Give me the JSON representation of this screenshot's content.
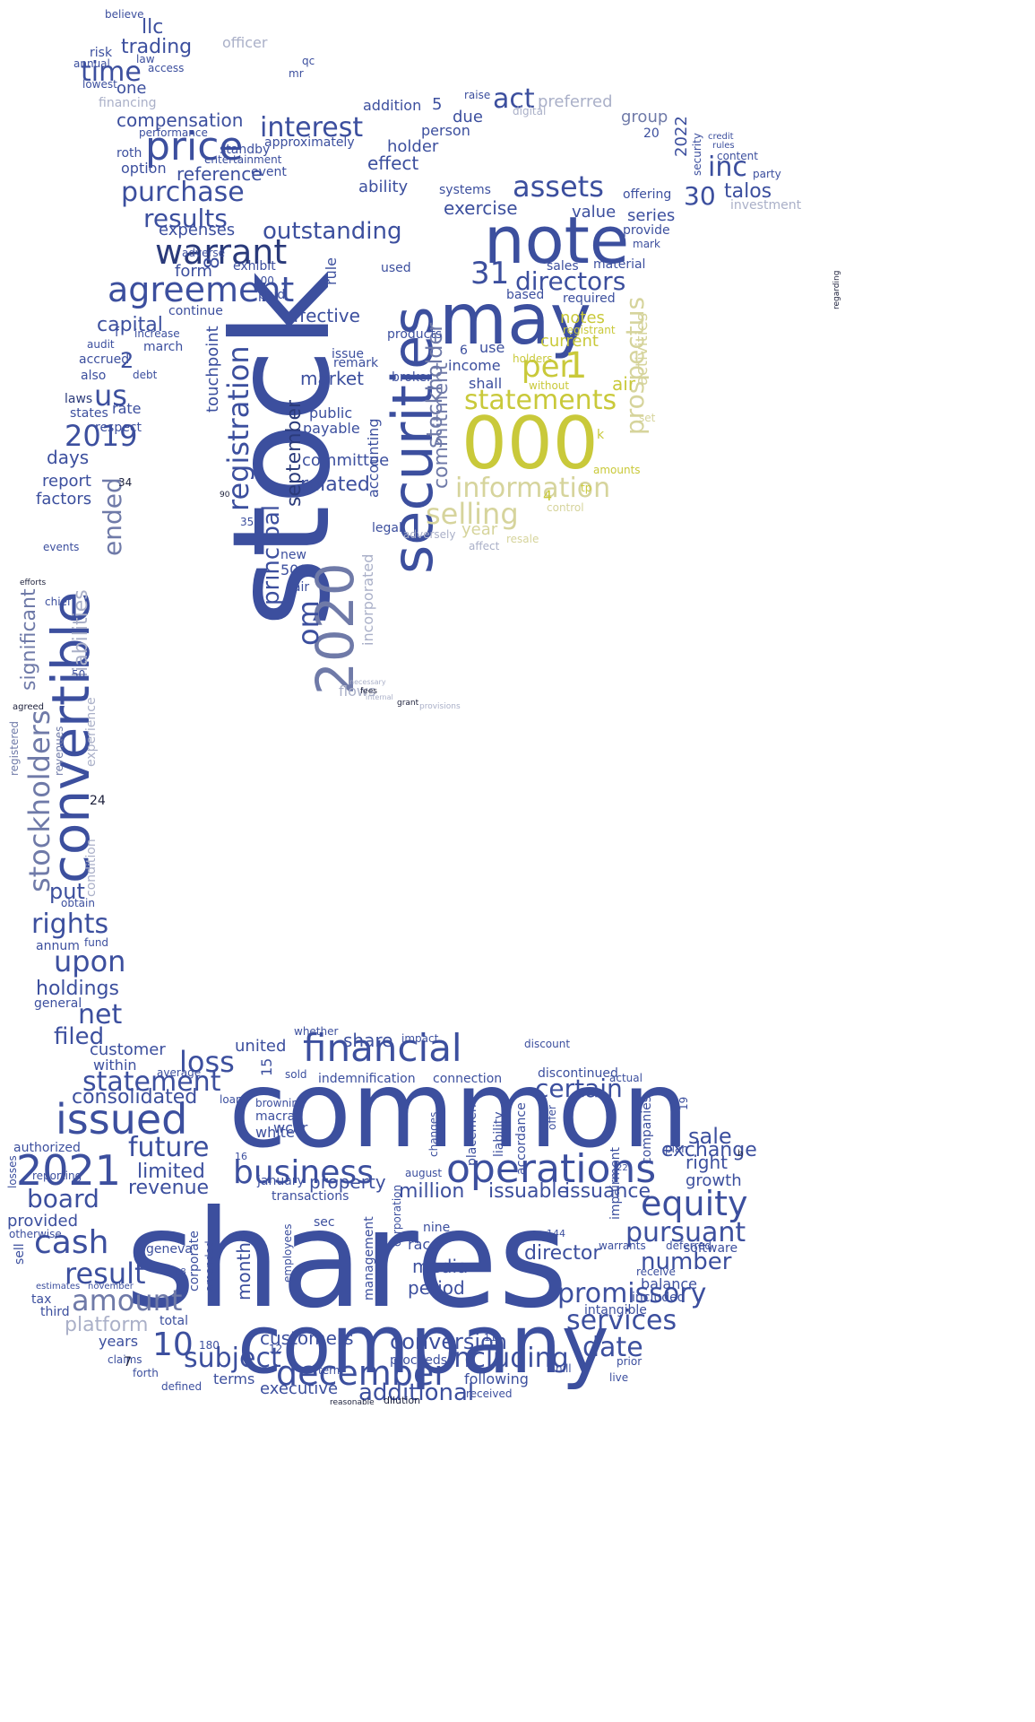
{
  "colors": {
    "navy": "#2a3a7a",
    "blue": "#3c4f9e",
    "slate": "#6f7aa8",
    "gray": "#aab0c8",
    "olive": "#c9c93a",
    "khaki": "#d6d49c",
    "dark": "#1b1f3a"
  },
  "words": [
    {
      "text": "shares",
      "color": "blue"
    },
    {
      "text": "common",
      "color": "blue"
    },
    {
      "text": "stock",
      "color": "blue"
    },
    {
      "text": "company",
      "color": "blue"
    },
    {
      "text": "securities",
      "color": "blue"
    },
    {
      "text": "000",
      "color": "olive"
    },
    {
      "text": "note",
      "color": "blue"
    },
    {
      "text": "may",
      "color": "blue"
    },
    {
      "text": "convertible",
      "color": "blue"
    },
    {
      "text": "2020",
      "color": "slate"
    },
    {
      "text": "issued",
      "color": "blue"
    },
    {
      "text": "2021",
      "color": "blue"
    },
    {
      "text": "financial",
      "color": "blue"
    },
    {
      "text": "operations",
      "color": "blue"
    },
    {
      "text": "business",
      "color": "blue"
    },
    {
      "text": "equity",
      "color": "blue"
    },
    {
      "text": "december",
      "color": "blue"
    },
    {
      "text": "price",
      "color": "blue"
    },
    {
      "text": "agreement",
      "color": "blue"
    },
    {
      "text": "warrant",
      "color": "navy"
    },
    {
      "text": "registration",
      "color": "blue"
    },
    {
      "text": "prospectus",
      "color": "khaki"
    },
    {
      "text": "statements",
      "color": "olive"
    },
    {
      "text": "information",
      "color": "khaki"
    },
    {
      "text": "selling",
      "color": "khaki"
    },
    {
      "text": "per",
      "color": "olive"
    },
    {
      "text": "stockholders",
      "color": "slate"
    },
    {
      "text": "cash",
      "color": "blue"
    },
    {
      "text": "promissory",
      "color": "blue"
    },
    {
      "text": "services",
      "color": "blue"
    },
    {
      "text": "amount",
      "color": "slate"
    },
    {
      "text": "result",
      "color": "blue"
    },
    {
      "text": "pursuant",
      "color": "blue"
    },
    {
      "text": "including",
      "color": "blue"
    },
    {
      "text": "assets",
      "color": "blue"
    },
    {
      "text": "directors",
      "color": "blue"
    },
    {
      "text": "interest",
      "color": "blue"
    },
    {
      "text": "purchase",
      "color": "blue"
    },
    {
      "text": "results",
      "color": "blue"
    },
    {
      "text": "2019",
      "color": "blue"
    },
    {
      "text": "principal",
      "color": "blue"
    },
    {
      "text": "september",
      "color": "navy"
    },
    {
      "text": "outstanding",
      "color": "blue"
    },
    {
      "text": "stockholder",
      "color": "slate"
    },
    {
      "text": "commitment",
      "color": "slate"
    },
    {
      "text": "loss",
      "color": "blue"
    },
    {
      "text": "statement",
      "color": "blue"
    },
    {
      "text": "future",
      "color": "blue"
    },
    {
      "text": "board",
      "color": "blue"
    },
    {
      "text": "date",
      "color": "blue"
    },
    {
      "text": "10",
      "color": "blue"
    },
    {
      "text": "subject",
      "color": "blue"
    },
    {
      "text": "certain",
      "color": "blue"
    },
    {
      "text": "number",
      "color": "blue"
    },
    {
      "text": "additional",
      "color": "blue"
    },
    {
      "text": "upon",
      "color": "blue"
    },
    {
      "text": "rights",
      "color": "blue"
    },
    {
      "text": "net",
      "color": "blue"
    },
    {
      "text": "limited",
      "color": "blue"
    },
    {
      "text": "conversion",
      "color": "blue"
    },
    {
      "text": "director",
      "color": "blue"
    },
    {
      "text": "sale",
      "color": "blue"
    },
    {
      "text": "exchange",
      "color": "blue"
    },
    {
      "text": "filed",
      "color": "blue"
    },
    {
      "text": "consolidated",
      "color": "blue"
    },
    {
      "text": "time",
      "color": "blue"
    },
    {
      "text": "act",
      "color": "blue"
    },
    {
      "text": "inc",
      "color": "blue"
    },
    {
      "text": "31",
      "color": "blue"
    },
    {
      "text": "30",
      "color": "blue"
    },
    {
      "text": "us",
      "color": "blue"
    },
    {
      "text": "om",
      "color": "blue"
    },
    {
      "text": "significant",
      "color": "slate"
    },
    {
      "text": "liabilities",
      "color": "gray"
    },
    {
      "text": "ended",
      "color": "slate"
    },
    {
      "text": "platform",
      "color": "gray"
    },
    {
      "text": "revenue",
      "color": "blue"
    },
    {
      "text": "property",
      "color": "blue"
    },
    {
      "text": "right",
      "color": "blue"
    },
    {
      "text": "growth",
      "color": "blue"
    },
    {
      "text": "million",
      "color": "blue"
    },
    {
      "text": "issuance",
      "color": "blue"
    },
    {
      "text": "issuable",
      "color": "blue"
    },
    {
      "text": "media",
      "color": "blue"
    },
    {
      "text": "period",
      "color": "blue"
    },
    {
      "text": "customers",
      "color": "blue"
    },
    {
      "text": "months",
      "color": "blue"
    },
    {
      "text": "share",
      "color": "blue"
    },
    {
      "text": "united",
      "color": "blue"
    },
    {
      "text": "customer",
      "color": "blue"
    },
    {
      "text": "within",
      "color": "blue"
    },
    {
      "text": "holdings",
      "color": "blue"
    },
    {
      "text": "put",
      "color": "blue"
    },
    {
      "text": "capital",
      "color": "blue"
    },
    {
      "text": "compensation",
      "color": "blue"
    },
    {
      "text": "trading",
      "color": "blue"
    },
    {
      "text": "llc",
      "color": "blue"
    },
    {
      "text": "one",
      "color": "blue"
    },
    {
      "text": "reference",
      "color": "blue"
    },
    {
      "text": "expenses",
      "color": "blue"
    },
    {
      "text": "form",
      "color": "blue"
    },
    {
      "text": "effective",
      "color": "blue"
    },
    {
      "text": "market",
      "color": "blue"
    },
    {
      "text": "committee",
      "color": "blue"
    },
    {
      "text": "related",
      "color": "blue"
    },
    {
      "text": "public",
      "color": "blue"
    },
    {
      "text": "payable",
      "color": "blue"
    },
    {
      "text": "exercise",
      "color": "blue"
    },
    {
      "text": "value",
      "color": "blue"
    },
    {
      "text": "series",
      "color": "blue"
    },
    {
      "text": "talos",
      "color": "blue"
    },
    {
      "text": "preferred",
      "color": "gray"
    },
    {
      "text": "group",
      "color": "slate"
    },
    {
      "text": "current",
      "color": "olive"
    },
    {
      "text": "notes",
      "color": "olive"
    },
    {
      "text": "air",
      "color": "olive"
    },
    {
      "text": "year",
      "color": "khaki"
    },
    {
      "text": "activities",
      "color": "khaki"
    },
    {
      "text": "income",
      "color": "blue"
    },
    {
      "text": "use",
      "color": "blue"
    },
    {
      "text": "shall",
      "color": "blue"
    },
    {
      "text": "accounting",
      "color": "blue"
    },
    {
      "text": "incorporated",
      "color": "gray"
    },
    {
      "text": "touchpoint",
      "color": "blue"
    },
    {
      "text": "days",
      "color": "blue"
    },
    {
      "text": "report",
      "color": "blue"
    },
    {
      "text": "factors",
      "color": "blue"
    },
    {
      "text": "rate",
      "color": "blue"
    },
    {
      "text": "respect",
      "color": "blue"
    },
    {
      "text": "condition",
      "color": "gray"
    },
    {
      "text": "experience",
      "color": "gray"
    },
    {
      "text": "revenues",
      "color": "slate"
    },
    {
      "text": "registered",
      "color": "slate"
    },
    {
      "text": "flows",
      "color": "gray"
    },
    {
      "text": "executive",
      "color": "blue"
    },
    {
      "text": "terms",
      "color": "blue"
    },
    {
      "text": "years",
      "color": "blue"
    },
    {
      "text": "proceeds",
      "color": "blue"
    },
    {
      "text": "following",
      "color": "blue"
    },
    {
      "text": "received",
      "color": "blue"
    },
    {
      "text": "software",
      "color": "blue"
    },
    {
      "text": "balance",
      "color": "blue"
    },
    {
      "text": "warrants",
      "color": "blue"
    },
    {
      "text": "deferred",
      "color": "blue"
    },
    {
      "text": "provided",
      "color": "blue"
    },
    {
      "text": "authorized",
      "color": "blue"
    },
    {
      "text": "macrab",
      "color": "blue"
    },
    {
      "text": "white",
      "color": "blue"
    },
    {
      "text": "transactions",
      "color": "blue"
    },
    {
      "text": "indemnification",
      "color": "blue"
    },
    {
      "text": "connection",
      "color": "blue"
    },
    {
      "text": "discontinued",
      "color": "blue"
    },
    {
      "text": "actual",
      "color": "blue"
    },
    {
      "text": "companies",
      "color": "blue"
    },
    {
      "text": "impairment",
      "color": "blue"
    },
    {
      "text": "intangible",
      "color": "blue"
    },
    {
      "text": "included",
      "color": "blue"
    },
    {
      "text": "total",
      "color": "blue"
    },
    {
      "text": "geneva",
      "color": "blue"
    },
    {
      "text": "corporate",
      "color": "blue"
    },
    {
      "text": "amended",
      "color": "blue"
    },
    {
      "text": "employees",
      "color": "blue"
    },
    {
      "text": "management",
      "color": "blue"
    },
    {
      "text": "race",
      "color": "blue"
    },
    {
      "text": "liability",
      "color": "blue"
    },
    {
      "text": "accordance",
      "color": "blue"
    },
    {
      "text": "august",
      "color": "blue"
    },
    {
      "text": "nine",
      "color": "blue"
    },
    {
      "text": "sec",
      "color": "blue"
    },
    {
      "text": "tax",
      "color": "blue"
    },
    {
      "text": "third",
      "color": "blue"
    },
    {
      "text": "sell",
      "color": "blue"
    },
    {
      "text": "annum",
      "color": "blue"
    },
    {
      "text": "fund",
      "color": "blue"
    },
    {
      "text": "general",
      "color": "blue"
    },
    {
      "text": "obtain",
      "color": "blue"
    },
    {
      "text": "chief",
      "color": "blue"
    },
    {
      "text": "events",
      "color": "blue"
    },
    {
      "text": "march",
      "color": "blue"
    },
    {
      "text": "increase",
      "color": "blue"
    },
    {
      "text": "accrued",
      "color": "blue"
    },
    {
      "text": "audit",
      "color": "blue"
    },
    {
      "text": "laws",
      "color": "navy"
    },
    {
      "text": "states",
      "color": "blue"
    },
    {
      "text": "also",
      "color": "blue"
    },
    {
      "text": "debt",
      "color": "blue"
    },
    {
      "text": "continue",
      "color": "blue"
    },
    {
      "text": "adverse",
      "color": "blue"
    },
    {
      "text": "option",
      "color": "blue"
    },
    {
      "text": "performance",
      "color": "blue"
    },
    {
      "text": "standby",
      "color": "blue"
    },
    {
      "text": "entertainment",
      "color": "blue"
    },
    {
      "text": "event",
      "color": "blue"
    },
    {
      "text": "roth",
      "color": "blue"
    },
    {
      "text": "effect",
      "color": "blue"
    },
    {
      "text": "ability",
      "color": "blue"
    },
    {
      "text": "holder",
      "color": "blue"
    },
    {
      "text": "person",
      "color": "blue"
    },
    {
      "text": "addition",
      "color": "blue"
    },
    {
      "text": "approximately",
      "color": "blue"
    },
    {
      "text": "due",
      "color": "blue"
    },
    {
      "text": "systems",
      "color": "blue"
    },
    {
      "text": "offering",
      "color": "blue"
    },
    {
      "text": "provide",
      "color": "blue"
    },
    {
      "text": "mark",
      "color": "blue"
    },
    {
      "text": "sales",
      "color": "blue"
    },
    {
      "text": "material",
      "color": "blue"
    },
    {
      "text": "based",
      "color": "blue"
    },
    {
      "text": "required",
      "color": "blue"
    },
    {
      "text": "registrant",
      "color": "olive"
    },
    {
      "text": "without",
      "color": "olive"
    },
    {
      "text": "holders",
      "color": "olive"
    },
    {
      "text": "broker",
      "color": "blue"
    },
    {
      "text": "products",
      "color": "blue"
    },
    {
      "text": "issue",
      "color": "blue"
    },
    {
      "text": "remark",
      "color": "blue"
    },
    {
      "text": "used",
      "color": "blue"
    },
    {
      "text": "rule",
      "color": "blue"
    },
    {
      "text": "exhibit",
      "color": "blue"
    },
    {
      "text": "paid",
      "color": "blue"
    },
    {
      "text": "new",
      "color": "blue"
    },
    {
      "text": "fair",
      "color": "blue"
    },
    {
      "text": "500",
      "color": "blue"
    },
    {
      "text": "legal",
      "color": "blue"
    },
    {
      "text": "control",
      "color": "khaki"
    },
    {
      "text": "resale",
      "color": "khaki"
    },
    {
      "text": "affect",
      "color": "gray"
    },
    {
      "text": "adversely",
      "color": "gray"
    },
    {
      "text": "tp",
      "color": "olive"
    },
    {
      "text": "amounts",
      "color": "olive"
    },
    {
      "text": "set",
      "color": "khaki"
    },
    {
      "text": "officer",
      "color": "gray"
    },
    {
      "text": "digital",
      "color": "gray"
    },
    {
      "text": "financing",
      "color": "gray"
    },
    {
      "text": "investment",
      "color": "gray"
    },
    {
      "text": "risk",
      "color": "blue"
    },
    {
      "text": "annual",
      "color": "blue"
    },
    {
      "text": "law",
      "color": "blue"
    },
    {
      "text": "access",
      "color": "blue"
    },
    {
      "text": "lowest",
      "color": "blue"
    },
    {
      "text": "believe",
      "color": "blue"
    },
    {
      "text": "mr",
      "color": "blue"
    },
    {
      "text": "qc",
      "color": "blue"
    },
    {
      "text": "party",
      "color": "blue"
    },
    {
      "text": "content",
      "color": "blue"
    },
    {
      "text": "credit",
      "color": "blue"
    },
    {
      "text": "rules",
      "color": "blue"
    },
    {
      "text": "security",
      "color": "blue"
    },
    {
      "text": "raise",
      "color": "blue"
    },
    {
      "text": "whether",
      "color": "blue"
    },
    {
      "text": "impact",
      "color": "blue"
    },
    {
      "text": "discount",
      "color": "blue"
    },
    {
      "text": "average",
      "color": "blue"
    },
    {
      "text": "loan",
      "color": "blue"
    },
    {
      "text": "sold",
      "color": "blue"
    },
    {
      "text": "browning",
      "color": "blue"
    },
    {
      "text": "january",
      "color": "blue"
    },
    {
      "text": "reporting",
      "color": "blue"
    },
    {
      "text": "losses",
      "color": "blue"
    },
    {
      "text": "otherwise",
      "color": "blue"
    },
    {
      "text": "estimates",
      "color": "blue"
    },
    {
      "text": "november",
      "color": "blue"
    },
    {
      "text": "claims",
      "color": "blue"
    },
    {
      "text": "forth",
      "color": "blue"
    },
    {
      "text": "defined",
      "color": "blue"
    },
    {
      "text": "hill",
      "color": "blue"
    },
    {
      "text": "prior",
      "color": "blue"
    },
    {
      "text": "live",
      "color": "blue"
    },
    {
      "text": "plan",
      "color": "blue"
    },
    {
      "text": "offer",
      "color": "blue"
    },
    {
      "text": "receive",
      "color": "blue"
    },
    {
      "text": "wcar",
      "color": "blue"
    },
    {
      "text": "changes",
      "color": "blue"
    },
    {
      "text": "placement",
      "color": "blue"
    },
    {
      "text": "corporation",
      "color": "blue"
    },
    {
      "text": "term",
      "color": "blue"
    },
    {
      "text": "reasonable",
      "color": "dark"
    },
    {
      "text": "dilution",
      "color": "dark"
    },
    {
      "text": "regarding",
      "color": "dark"
    },
    {
      "text": "provisions",
      "color": "gray"
    },
    {
      "text": "grant",
      "color": "dark"
    },
    {
      "text": "fees",
      "color": "dark"
    },
    {
      "text": "internal",
      "color": "gray"
    },
    {
      "text": "necessary",
      "color": "gray"
    },
    {
      "text": "agreed",
      "color": "dark"
    },
    {
      "text": "efforts",
      "color": "dark"
    },
    {
      "text": "24",
      "color": "dark"
    },
    {
      "text": "34",
      "color": "dark"
    },
    {
      "text": "90",
      "color": "dark"
    },
    {
      "text": "7",
      "color": "dark"
    },
    {
      "text": "22",
      "color": "blue"
    },
    {
      "text": "2022",
      "color": "blue"
    },
    {
      "text": "20",
      "color": "blue"
    },
    {
      "text": "5",
      "color": "blue"
    },
    {
      "text": "6",
      "color": "blue"
    },
    {
      "text": "4",
      "color": "olive"
    },
    {
      "text": "1",
      "color": "olive"
    },
    {
      "text": "2",
      "color": "blue"
    },
    {
      "text": "8",
      "color": "blue"
    },
    {
      "text": "15",
      "color": "blue"
    },
    {
      "text": "16",
      "color": "blue"
    },
    {
      "text": "19",
      "color": "blue"
    },
    {
      "text": "11",
      "color": "blue"
    },
    {
      "text": "12",
      "color": "blue"
    },
    {
      "text": "144",
      "color": "blue"
    },
    {
      "text": "180",
      "color": "blue"
    },
    {
      "text": "100",
      "color": "blue"
    },
    {
      "text": "50",
      "color": "blue"
    },
    {
      "text": "35",
      "color": "blue"
    },
    {
      "text": "18",
      "color": "blue"
    },
    {
      "text": "f",
      "color": "blue"
    },
    {
      "text": "k",
      "color": "olive"
    },
    {
      "text": "b",
      "color": "dark"
    }
  ]
}
